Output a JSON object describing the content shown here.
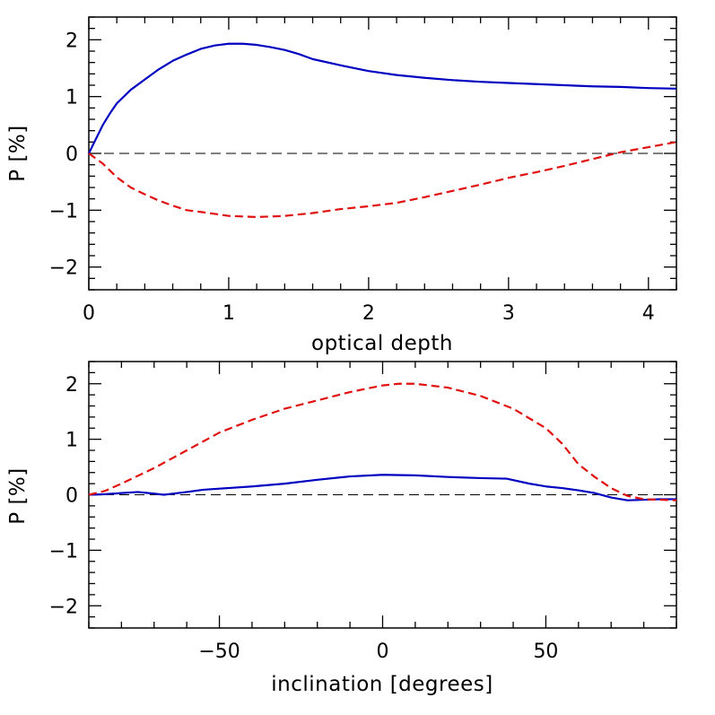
{
  "chart_data": [
    {
      "type": "line",
      "xlabel": "optical depth",
      "ylabel": "P [%]",
      "xlim": [
        0,
        4.2
      ],
      "ylim": [
        -2.4,
        2.4
      ],
      "xticks_major": [
        0,
        1,
        2,
        3,
        4
      ],
      "xtick_labels": [
        "0",
        "1",
        "2",
        "3",
        "4"
      ],
      "xticks_minor_step": 0.2,
      "yticks_major": [
        -2,
        -1,
        0,
        1,
        2
      ],
      "ytick_labels": [
        "−2",
        "−1",
        "0",
        "1",
        "2"
      ],
      "yticks_minor_step": 0.2,
      "zero_line": true,
      "series": [
        {
          "name": "solid-blue",
          "color": "#0000c0",
          "style": "solid",
          "x": [
            0,
            0.05,
            0.1,
            0.15,
            0.2,
            0.3,
            0.4,
            0.5,
            0.6,
            0.7,
            0.8,
            0.9,
            1.0,
            1.1,
            1.2,
            1.3,
            1.4,
            1.5,
            1.6,
            1.8,
            2.0,
            2.2,
            2.4,
            2.6,
            2.8,
            3.0,
            3.2,
            3.4,
            3.6,
            3.8,
            4.0,
            4.2
          ],
          "y": [
            0,
            0.25,
            0.5,
            0.7,
            0.88,
            1.12,
            1.3,
            1.48,
            1.63,
            1.74,
            1.84,
            1.9,
            1.93,
            1.93,
            1.91,
            1.87,
            1.82,
            1.75,
            1.66,
            1.55,
            1.45,
            1.38,
            1.33,
            1.29,
            1.26,
            1.24,
            1.22,
            1.2,
            1.18,
            1.17,
            1.15,
            1.14
          ]
        },
        {
          "name": "dashed-red",
          "color": "#e01010",
          "style": "dashed",
          "x": [
            0,
            0.1,
            0.2,
            0.3,
            0.4,
            0.5,
            0.6,
            0.7,
            0.8,
            1.0,
            1.2,
            1.4,
            1.6,
            1.8,
            2.0,
            2.2,
            2.4,
            2.6,
            2.8,
            3.0,
            3.2,
            3.4,
            3.6,
            3.8,
            4.0,
            4.2
          ],
          "y": [
            0,
            -0.18,
            -0.42,
            -0.6,
            -0.72,
            -0.83,
            -0.92,
            -1.0,
            -1.03,
            -1.1,
            -1.12,
            -1.1,
            -1.05,
            -0.98,
            -0.93,
            -0.87,
            -0.77,
            -0.66,
            -0.55,
            -0.43,
            -0.33,
            -0.22,
            -0.1,
            0.02,
            0.11,
            0.2
          ]
        }
      ]
    },
    {
      "type": "line",
      "xlabel": "inclination [degrees]",
      "ylabel": "P [%]",
      "xlim": [
        -90,
        90
      ],
      "ylim": [
        -2.4,
        2.4
      ],
      "xticks_major": [
        -50,
        0,
        50
      ],
      "xtick_labels": [
        "−50",
        "0",
        "50"
      ],
      "xticks_minor_step": 10,
      "yticks_major": [
        -2,
        -1,
        0,
        1,
        2
      ],
      "ytick_labels": [
        "−2",
        "−1",
        "0",
        "1",
        "2"
      ],
      "yticks_minor_step": 0.2,
      "zero_line": true,
      "series": [
        {
          "name": "solid-blue",
          "color": "#0000c0",
          "style": "solid",
          "x": [
            -90,
            -85,
            -80,
            -75,
            -70,
            -67,
            -60,
            -55,
            -50,
            -40,
            -30,
            -20,
            -10,
            0,
            10,
            20,
            30,
            38,
            45,
            50,
            55,
            60,
            65,
            70,
            75,
            80,
            85,
            90
          ],
          "y": [
            0,
            0.01,
            0.03,
            0.05,
            0.02,
            0.0,
            0.05,
            0.09,
            0.11,
            0.15,
            0.2,
            0.27,
            0.33,
            0.36,
            0.35,
            0.32,
            0.3,
            0.29,
            0.2,
            0.15,
            0.12,
            0.08,
            0.03,
            -0.05,
            -0.1,
            -0.09,
            -0.08,
            -0.08
          ]
        },
        {
          "name": "dashed-red",
          "color": "#e01010",
          "style": "dashed",
          "x": [
            -90,
            -85,
            -80,
            -70,
            -60,
            -50,
            -40,
            -30,
            -20,
            -10,
            0,
            5,
            10,
            20,
            30,
            40,
            50,
            55,
            60,
            65,
            70,
            75,
            80,
            85,
            90
          ],
          "y": [
            0,
            0.07,
            0.2,
            0.48,
            0.8,
            1.12,
            1.35,
            1.55,
            1.7,
            1.85,
            1.97,
            2.0,
            2.0,
            1.93,
            1.78,
            1.55,
            1.2,
            0.92,
            0.55,
            0.32,
            0.12,
            -0.02,
            -0.08,
            -0.09,
            -0.1
          ]
        }
      ]
    }
  ]
}
